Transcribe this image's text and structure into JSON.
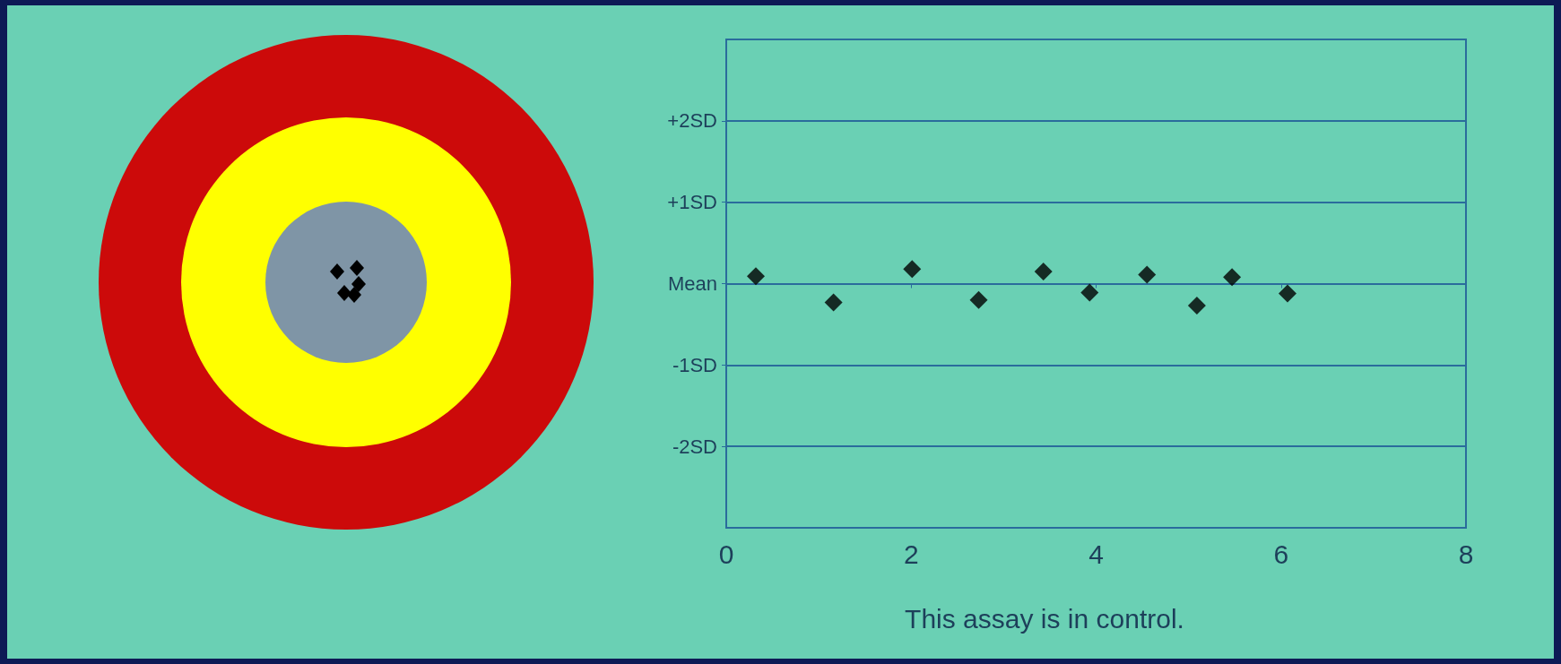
{
  "chart_data": {
    "type": "scatter",
    "x": [
      0.32,
      1.16,
      2.01,
      2.73,
      3.43,
      3.93,
      4.55,
      5.09,
      5.47,
      6.07
    ],
    "series": [
      {
        "color": "#000000",
        "values": [
          0.09,
          -0.23,
          0.18,
          -0.2,
          0.15,
          -0.11,
          0.11,
          -0.27,
          0.08,
          -0.12
        ]
      }
    ],
    "xlim": [
      0,
      8
    ],
    "xticks": [
      0,
      2,
      4,
      6,
      8
    ],
    "ylim": [
      -3,
      3
    ],
    "yticks": [
      {
        "value": -2,
        "label": "-2SD"
      },
      {
        "value": -1,
        "label": "-1SD"
      },
      {
        "value": 0,
        "label": "Mean"
      },
      {
        "value": 1,
        "label": "+1SD"
      },
      {
        "value": 2,
        "label": "+2SD"
      }
    ],
    "grid": "y",
    "marker": "diamond",
    "annotations": [
      "This assay is in control."
    ]
  }
}
